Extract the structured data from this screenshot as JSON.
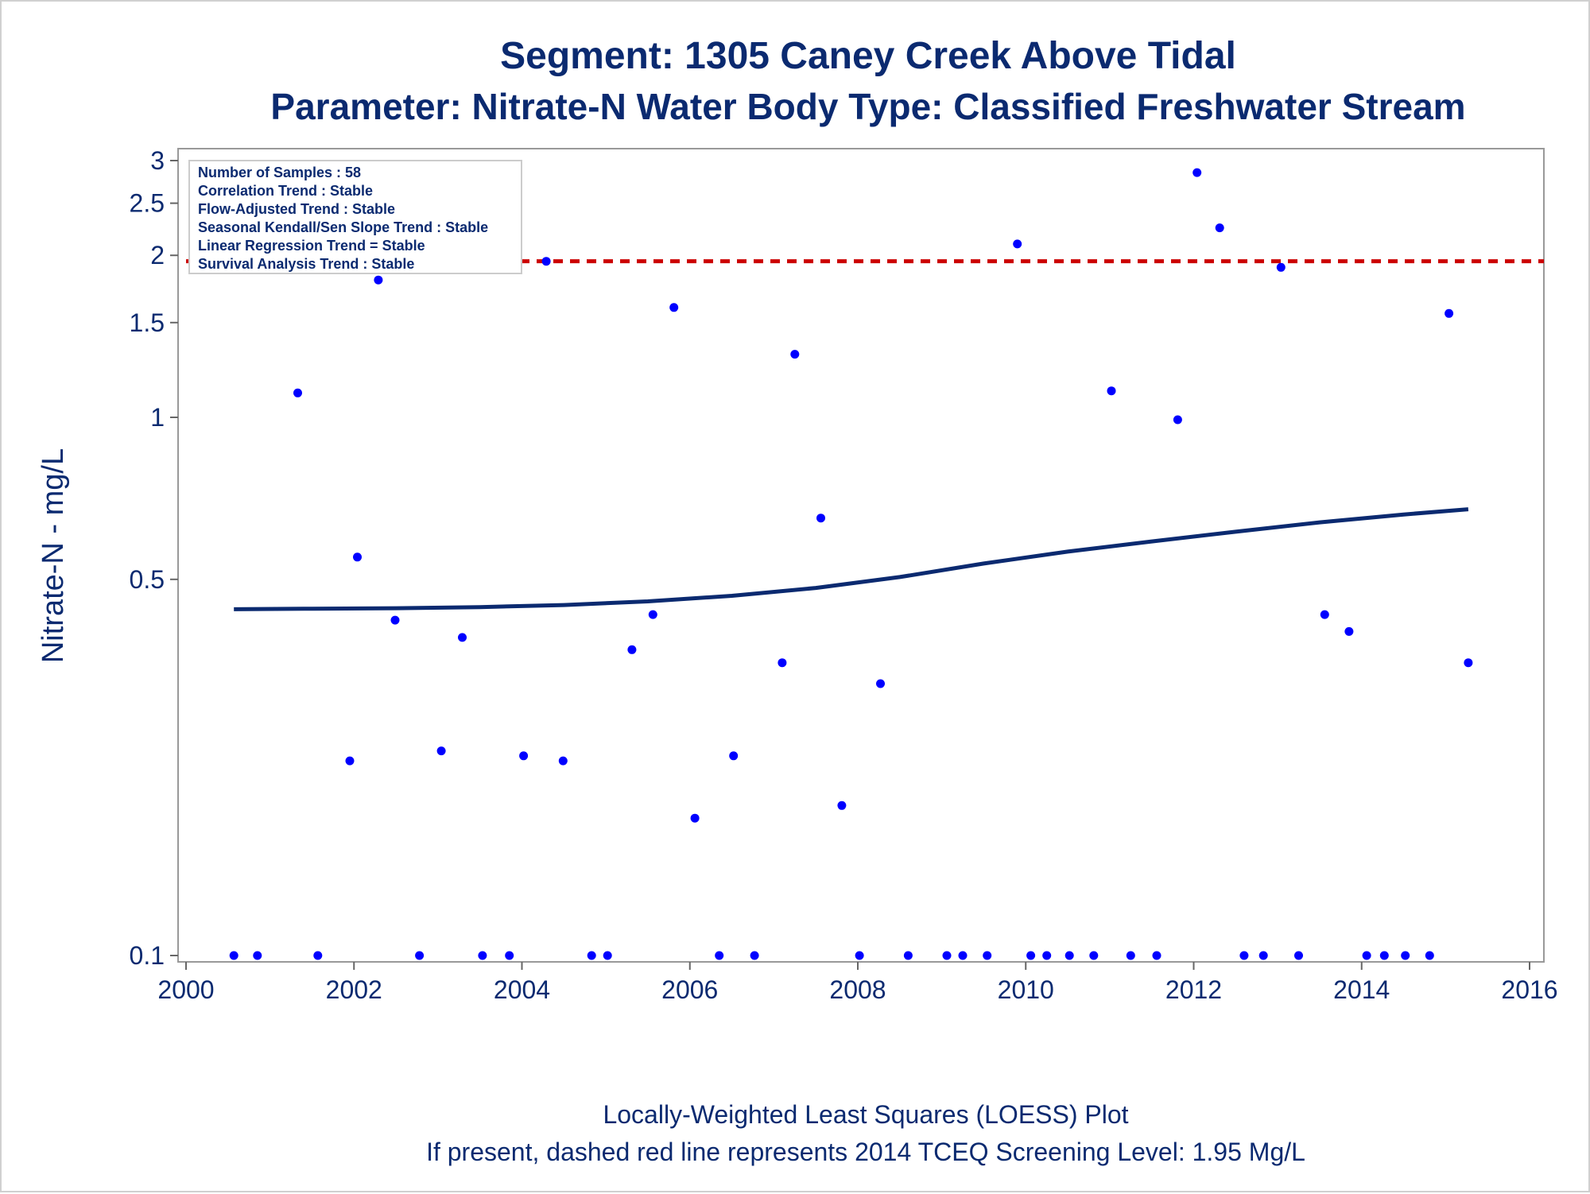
{
  "chart_data": {
    "type": "scatter",
    "title": "Segment: 1305  Caney Creek Above Tidal",
    "subtitle": "Parameter: Nitrate-N   Water Body Type: Classified Freshwater Stream",
    "xlabel": "",
    "ylabel": "Nitrate-N - mg/L",
    "y_scale": "log",
    "xlim": [
      2000,
      2016
    ],
    "ylim": [
      0.1,
      3
    ],
    "x_ticks": [
      2000,
      2002,
      2004,
      2006,
      2008,
      2010,
      2012,
      2014,
      2016
    ],
    "y_ticks": [
      0.1,
      0.5,
      1,
      1.5,
      2,
      2.5,
      3
    ],
    "y_tick_labels": [
      "0.1",
      "0.5",
      "1",
      "1.5",
      "2",
      "2.5",
      "3"
    ],
    "grid": false,
    "legend_position": "top-left",
    "legend_box": [
      "Number of Samples : 58",
      "Correlation Trend : Stable",
      "Flow-Adjusted Trend : Stable",
      "Seasonal Kendall/Sen Slope Trend : Stable",
      "Linear Regression Trend = Stable",
      "Survival Analysis Trend : Stable"
    ],
    "screening_level": 1.95,
    "footnotes": [
      "Locally-Weighted Least Squares (LOESS) Plot",
      "If present, dashed red line represents 2014 TCEQ Screening Level: 1.95 Mg/L"
    ],
    "colors": {
      "points": "#0000ff",
      "loess": "#0b2a70",
      "screening": "#cc0000",
      "text": "#0b2a70",
      "frame": "#999999"
    },
    "series": [
      {
        "type": "scatter",
        "points": [
          [
            2000.57,
            0.1
          ],
          [
            2000.85,
            0.1
          ],
          [
            2001.33,
            1.11
          ],
          [
            2001.57,
            0.1
          ],
          [
            2001.95,
            0.23
          ],
          [
            2002.04,
            0.55
          ],
          [
            2002.29,
            1.8
          ],
          [
            2002.49,
            0.42
          ],
          [
            2002.78,
            0.1
          ],
          [
            2003.04,
            0.24
          ],
          [
            2003.29,
            0.39
          ],
          [
            2003.53,
            0.1
          ],
          [
            2003.85,
            0.1
          ],
          [
            2004.02,
            0.235
          ],
          [
            2004.29,
            1.95
          ],
          [
            2004.49,
            0.23
          ],
          [
            2004.83,
            0.1
          ],
          [
            2005.02,
            0.1
          ],
          [
            2005.31,
            0.37
          ],
          [
            2005.56,
            0.43
          ],
          [
            2005.81,
            1.6
          ],
          [
            2006.06,
            0.18
          ],
          [
            2006.35,
            0.1
          ],
          [
            2006.52,
            0.235
          ],
          [
            2006.77,
            0.1
          ],
          [
            2007.1,
            0.35
          ],
          [
            2007.25,
            1.31
          ],
          [
            2007.56,
            0.65
          ],
          [
            2007.81,
            0.19
          ],
          [
            2008.02,
            0.1
          ],
          [
            2008.27,
            0.32
          ],
          [
            2008.6,
            0.1
          ],
          [
            2009.06,
            0.1
          ],
          [
            2009.25,
            0.1
          ],
          [
            2009.54,
            0.1
          ],
          [
            2009.9,
            2.1
          ],
          [
            2010.06,
            0.1
          ],
          [
            2010.25,
            0.1
          ],
          [
            2010.52,
            0.1
          ],
          [
            2010.81,
            0.1
          ],
          [
            2011.02,
            1.12
          ],
          [
            2011.25,
            0.1
          ],
          [
            2011.56,
            0.1
          ],
          [
            2011.81,
            0.99
          ],
          [
            2012.04,
            2.85
          ],
          [
            2012.31,
            2.25
          ],
          [
            2012.6,
            0.1
          ],
          [
            2012.83,
            0.1
          ],
          [
            2013.04,
            1.9
          ],
          [
            2013.25,
            0.1
          ],
          [
            2013.56,
            0.43
          ],
          [
            2013.85,
            0.4
          ],
          [
            2014.06,
            0.1
          ],
          [
            2014.27,
            0.1
          ],
          [
            2014.52,
            0.1
          ],
          [
            2014.81,
            0.1
          ],
          [
            2015.04,
            1.56
          ],
          [
            2015.27,
            0.35
          ]
        ]
      },
      {
        "type": "line",
        "points": [
          [
            2000.57,
            0.44
          ],
          [
            2001.5,
            0.441
          ],
          [
            2002.5,
            0.442
          ],
          [
            2003.5,
            0.444
          ],
          [
            2004.5,
            0.448
          ],
          [
            2005.5,
            0.455
          ],
          [
            2006.5,
            0.466
          ],
          [
            2007.5,
            0.482
          ],
          [
            2008.5,
            0.505
          ],
          [
            2009.5,
            0.535
          ],
          [
            2010.5,
            0.563
          ],
          [
            2011.5,
            0.588
          ],
          [
            2012.5,
            0.613
          ],
          [
            2013.5,
            0.638
          ],
          [
            2014.5,
            0.66
          ],
          [
            2015.27,
            0.675
          ]
        ]
      }
    ]
  }
}
